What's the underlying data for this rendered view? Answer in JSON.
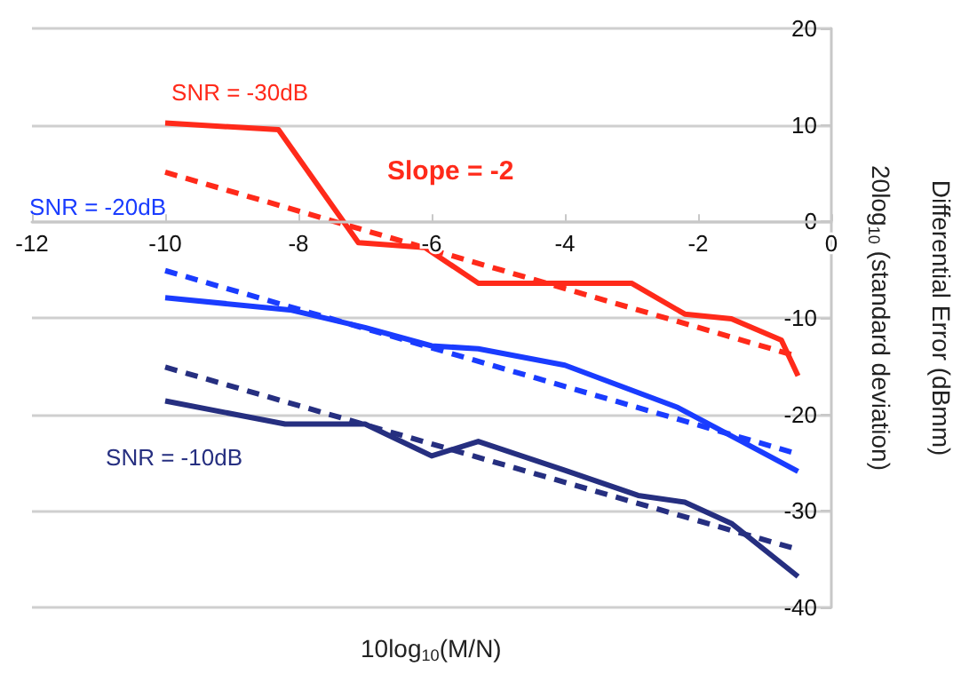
{
  "chart_data": {
    "type": "line",
    "xlabel": "10log$_{10}$(M/N)",
    "ylabel": "Differential Error (dBmm)\n20log$_{10}$ (standard deviation)",
    "xlim": [
      -12,
      0
    ],
    "xticks": [
      -12,
      -10,
      -8,
      -6,
      -4,
      -2,
      0
    ],
    "ylim": [
      -40,
      20
    ],
    "yticks": [
      -40,
      -30,
      -20,
      -10,
      0,
      10,
      20
    ],
    "grid": "y",
    "legend": false,
    "marker": "none",
    "annotations": [
      "Slope = -2"
    ],
    "series": [
      {
        "name": "SNR = -30dB",
        "color": "#ff2a1a",
        "line_style": "solid",
        "x": [
          -10,
          -8.3,
          -7.1,
          -6.1,
          -5.3,
          -3.0,
          -2.2,
          -1.5,
          -0.75,
          -0.5
        ],
        "values": [
          10.2,
          9.5,
          -2.2,
          -2.7,
          -6.4,
          -6.4,
          -9.6,
          -10.1,
          -12.3,
          -16.0
        ]
      },
      {
        "color": "#ff2a1a",
        "line_style": "dashed",
        "x": [
          -10,
          -0.5
        ],
        "values": [
          5.1,
          -14.0
        ]
      },
      {
        "name": "SNR = -20dB",
        "color": "#1a3cff",
        "line_style": "solid",
        "x": [
          -10,
          -8.1,
          -7.0,
          -6.0,
          -5.3,
          -4.0,
          -2.3,
          -0.5
        ],
        "values": [
          -7.9,
          -9.2,
          -11.0,
          -12.9,
          -13.2,
          -14.9,
          -19.3,
          -25.9
        ]
      },
      {
        "color": "#1a3cff",
        "line_style": "dashed",
        "x": [
          -10,
          -0.5
        ],
        "values": [
          -5.1,
          -24.1
        ]
      },
      {
        "name": "SNR = -10dB",
        "color": "#262f80",
        "line_style": "solid",
        "x": [
          -10,
          -8.2,
          -7.0,
          -6.0,
          -5.3,
          -4.0,
          -2.9,
          -2.2,
          -1.5,
          -0.5
        ],
        "values": [
          -18.6,
          -21.0,
          -21.0,
          -24.3,
          -22.8,
          -25.8,
          -28.4,
          -29.1,
          -31.3,
          -36.8
        ]
      },
      {
        "color": "#262f80",
        "line_style": "dashed",
        "x": [
          -10,
          -0.5
        ],
        "values": [
          -15.1,
          -34.0
        ]
      }
    ]
  }
}
